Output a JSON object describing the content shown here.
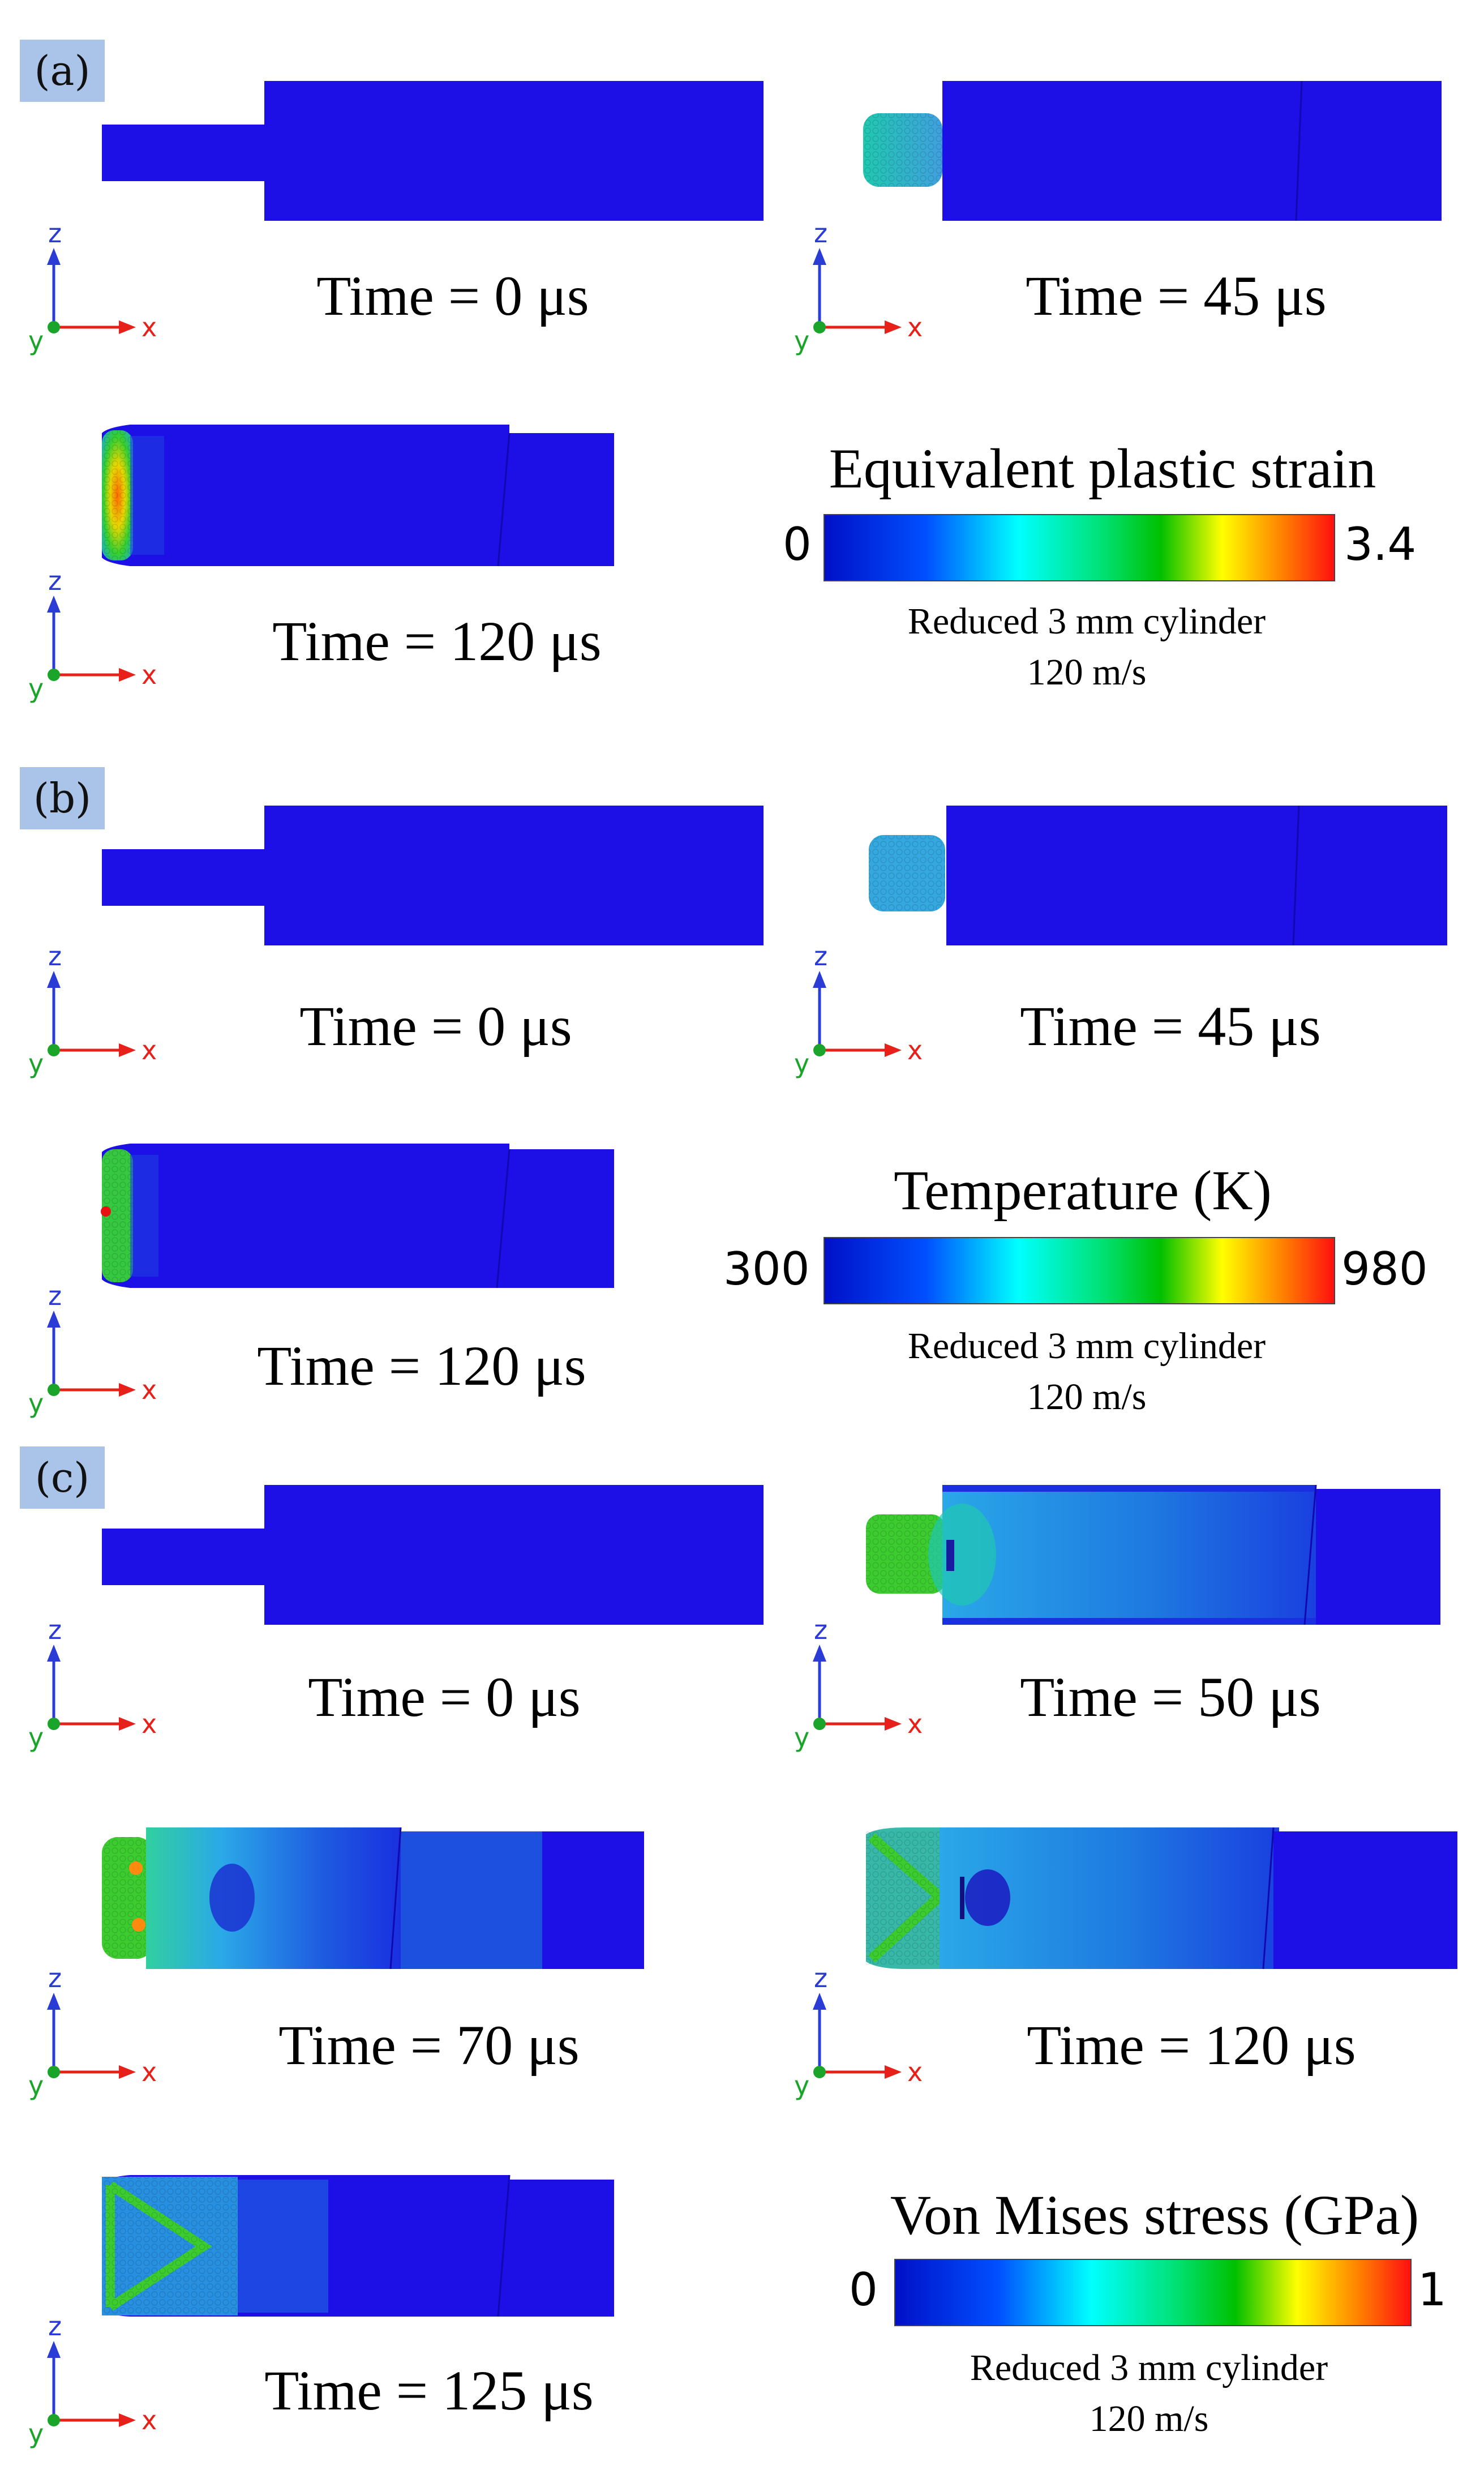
{
  "panels": [
    {
      "label": "(a)",
      "times": [
        "Time = 0 μs",
        "Time = 45 μs",
        "Time = 120 μs"
      ],
      "colorbar": {
        "title": "Equivalent plastic strain",
        "min": "0",
        "max": "3.4",
        "note_line1": "Reduced 3 mm cylinder",
        "note_line2": "120 m/s"
      }
    },
    {
      "label": "(b)",
      "times": [
        "Time = 0 μs",
        "Time = 45 μs",
        "Time = 120 μs"
      ],
      "colorbar": {
        "title": "Temperature (K)",
        "min": "300",
        "max": "980",
        "note_line1": "Reduced 3 mm cylinder",
        "note_line2": "120 m/s"
      }
    },
    {
      "label": "(c)",
      "times": [
        "Time = 0 μs",
        "Time = 50 μs",
        "Time = 70 μs",
        "Time = 120 μs",
        "Time = 125 μs"
      ],
      "colorbar": {
        "title": "Von Mises stress (GPa)",
        "min": "0",
        "max": "1",
        "note_line1": "Reduced 3 mm cylinder",
        "note_line2": "120 m/s"
      }
    }
  ],
  "axis_labels": {
    "z": "z",
    "x": "x",
    "y": "y"
  },
  "colors": {
    "blue": "#1c10e6",
    "panel_label_bg": "#a9c4e8",
    "axis_z": "#2a3bd6",
    "axis_x": "#e8201a",
    "axis_y": "#1aa52a"
  }
}
